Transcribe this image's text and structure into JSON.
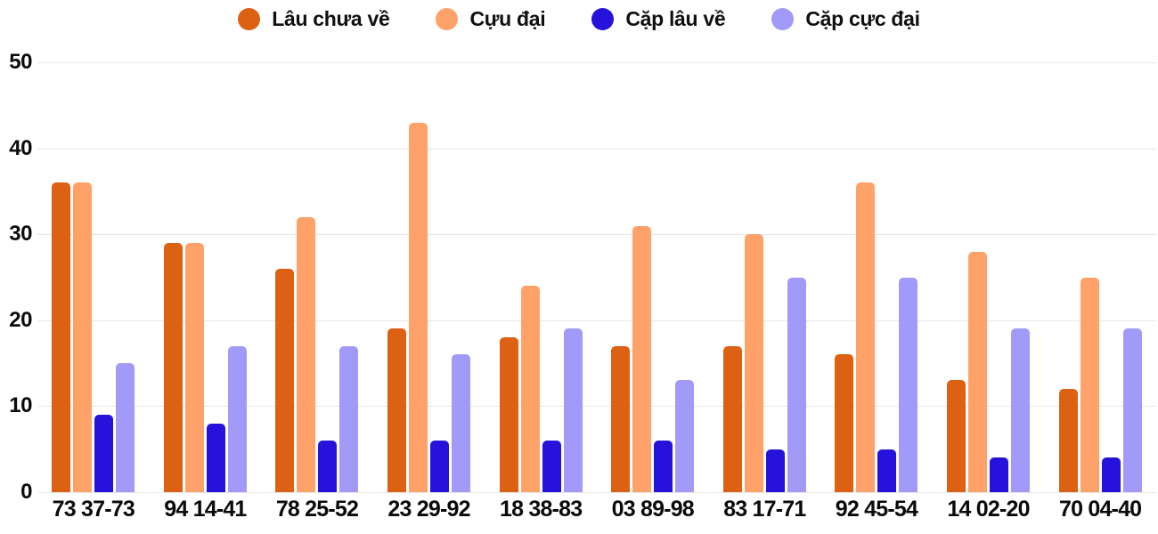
{
  "chart_data": {
    "type": "bar",
    "title": "",
    "xlabel": "",
    "ylabel": "",
    "ylim": [
      0,
      50
    ],
    "yticks": [
      0,
      10,
      20,
      30,
      40,
      50
    ],
    "grid": true,
    "legend_position": "top",
    "categories": [
      "73 37-73",
      "94 14-41",
      "78 25-52",
      "23 29-92",
      "18 38-83",
      "03 89-98",
      "83 17-71",
      "92 45-54",
      "14 02-20",
      "70 04-40"
    ],
    "series": [
      {
        "name": "Lâu chưa về",
        "color": "#dd6112",
        "values": [
          36,
          29,
          26,
          19,
          18,
          17,
          17,
          16,
          13,
          12
        ]
      },
      {
        "name": "Cựu đại",
        "color": "#ffa269",
        "values": [
          36,
          29,
          32,
          43,
          24,
          31,
          30,
          36,
          28,
          25
        ]
      },
      {
        "name": "Cặp lâu về",
        "color": "#2712dc",
        "values": [
          9,
          8,
          6,
          6,
          6,
          6,
          5,
          5,
          4,
          4
        ]
      },
      {
        "name": "Cặp cực đại",
        "color": "#a29af8",
        "values": [
          15,
          17,
          17,
          16,
          19,
          13,
          25,
          25,
          19,
          19
        ]
      }
    ],
    "grid_color": "#e7e7e7",
    "text_color": "#0c0c0c"
  }
}
